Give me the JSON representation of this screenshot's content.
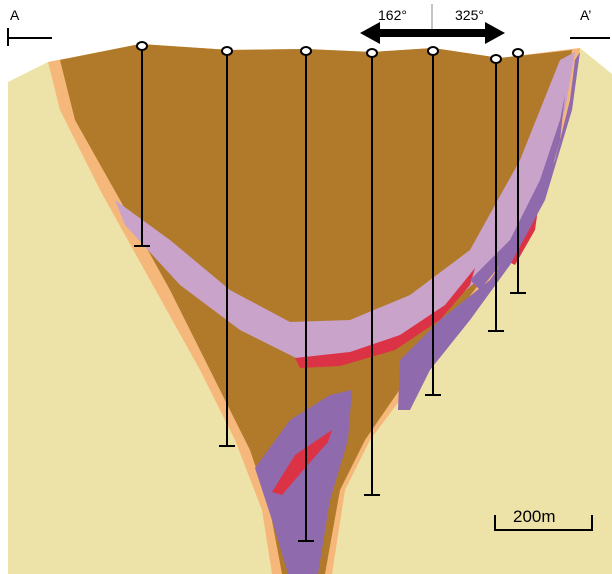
{
  "section": {
    "start_label": "A",
    "end_label": "A’"
  },
  "orientation": {
    "left_azimuth": "162°",
    "right_azimuth": "325°"
  },
  "scale_bar": {
    "label": "200m"
  }
}
